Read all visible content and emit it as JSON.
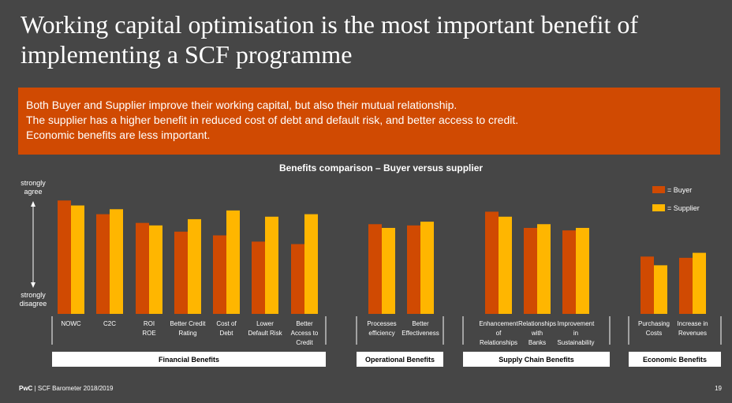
{
  "slide": {
    "title": "Working capital optimisation is the most important benefit of implementing a SCF programme",
    "callout_lines": [
      "Both Buyer and Supplier improve their working capital, but also their mutual relationship.",
      "The supplier has a higher benefit in reduced cost of debt and default risk, and better access to credit.",
      "Economic benefits are less important."
    ],
    "accent_color": "#d04a02",
    "footer_brand": "PwC",
    "footer_text": "SCF Barometer 2018/2019",
    "page_number": "19"
  },
  "chart_data": {
    "type": "bar",
    "title": "Benefits comparison – Buyer versus supplier",
    "y_top_label": [
      "strongly",
      "agree"
    ],
    "y_bottom_label": [
      "strongly",
      "disagree"
    ],
    "ylim": [
      0,
      100
    ],
    "legend": {
      "placement": "top-right"
    },
    "series": [
      {
        "name": "= Buyer",
        "color": "#d04a02"
      },
      {
        "name": "= Supplier",
        "color": "#ffb600"
      }
    ],
    "groups": [
      {
        "name": "Financial Benefits",
        "categories": [
          {
            "label": [
              "NOWC"
            ],
            "values": [
              91,
              87
            ]
          },
          {
            "label": [
              "C2C"
            ],
            "values": [
              80,
              84
            ]
          },
          {
            "label": [
              "ROI",
              "ROE"
            ],
            "values": [
              73,
              71
            ]
          },
          {
            "label": [
              "Better Credit",
              "Rating"
            ],
            "values": [
              66,
              76
            ]
          },
          {
            "label": [
              "Cost of",
              "Debt"
            ],
            "values": [
              63,
              83
            ]
          },
          {
            "label": [
              "Lower",
              "Default Risk"
            ],
            "values": [
              58,
              78
            ]
          },
          {
            "label": [
              "Better",
              "Access to",
              "Credit"
            ],
            "values": [
              56,
              80
            ]
          }
        ]
      },
      {
        "name": "Operational Benefits",
        "categories": [
          {
            "label": [
              "Processes",
              "efficiency"
            ],
            "values": [
              72,
              69
            ]
          },
          {
            "label": [
              "Better",
              "Effectiveness"
            ],
            "values": [
              71,
              74
            ]
          }
        ]
      },
      {
        "name": "Supply Chain Benefits",
        "categories": [
          {
            "label": [
              "Enhancement",
              "of",
              "Relationships"
            ],
            "values": [
              82,
              78
            ]
          },
          {
            "label": [
              "Relationships",
              "with",
              "Banks"
            ],
            "values": [
              69,
              72
            ]
          },
          {
            "label": [
              "Improvement",
              "in",
              "Sustainability"
            ],
            "values": [
              67,
              69
            ]
          }
        ]
      },
      {
        "name": "Economic Benefits",
        "categories": [
          {
            "label": [
              "Purchasing",
              "Costs"
            ],
            "values": [
              46,
              39
            ]
          },
          {
            "label": [
              "Increase in",
              "Revenues"
            ],
            "values": [
              45,
              49
            ]
          }
        ]
      }
    ]
  }
}
